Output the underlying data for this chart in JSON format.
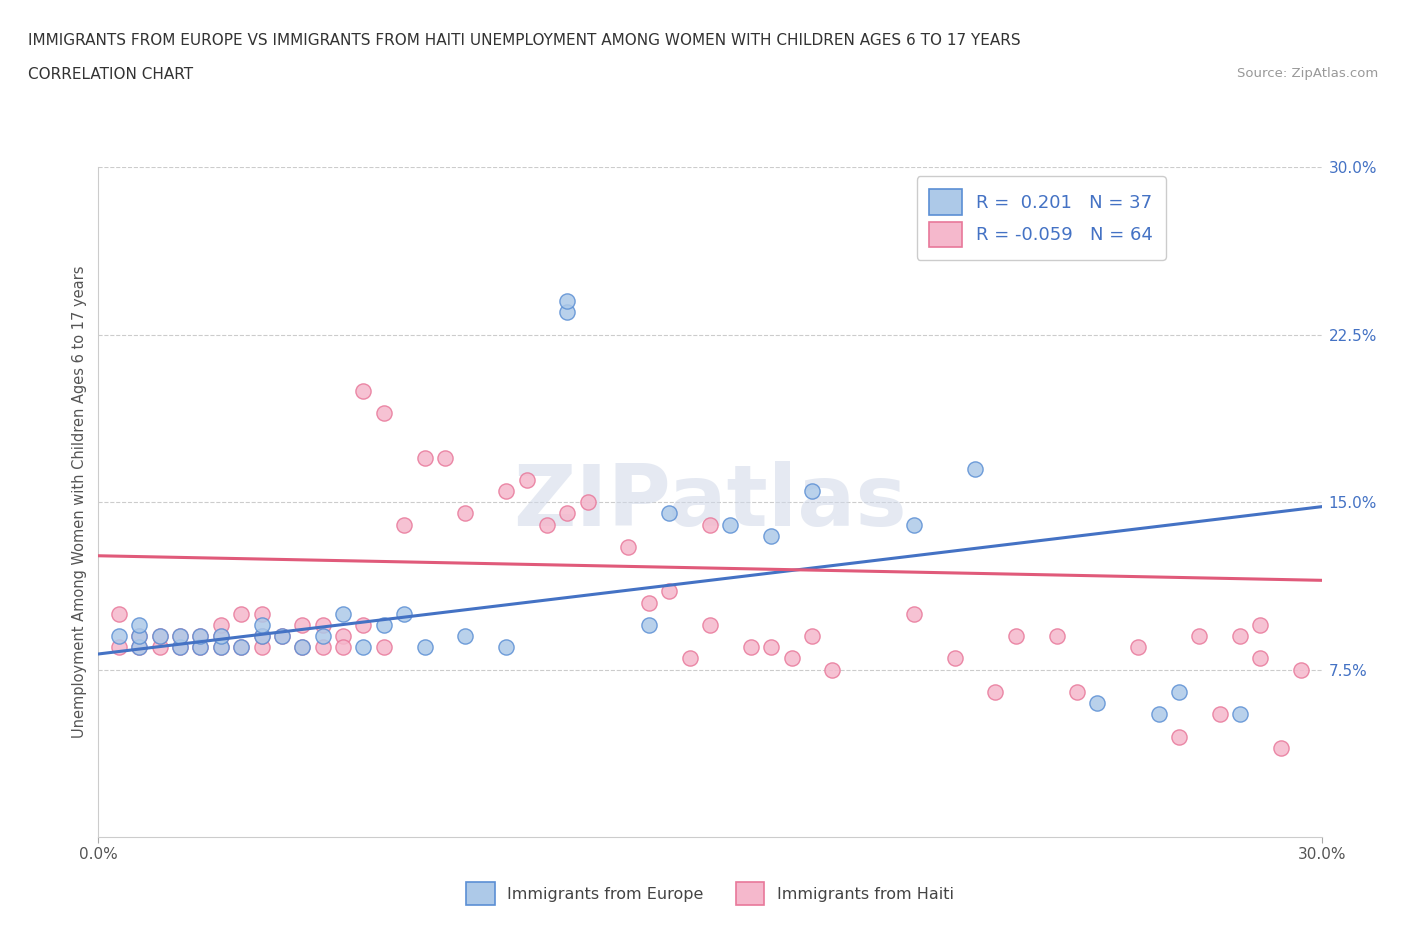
{
  "title": "IMMIGRANTS FROM EUROPE VS IMMIGRANTS FROM HAITI UNEMPLOYMENT AMONG WOMEN WITH CHILDREN AGES 6 TO 17 YEARS",
  "subtitle": "CORRELATION CHART",
  "source": "Source: ZipAtlas.com",
  "ylabel": "Unemployment Among Women with Children Ages 6 to 17 years",
  "xmin": 0.0,
  "xmax": 0.3,
  "ymin": 0.0,
  "ymax": 0.3,
  "ytick_labels_right": [
    "7.5%",
    "15.0%",
    "22.5%",
    "30.0%"
  ],
  "ytick_positions_right": [
    0.075,
    0.15,
    0.225,
    0.3
  ],
  "europe_R": 0.201,
  "europe_N": 37,
  "haiti_R": -0.059,
  "haiti_N": 64,
  "europe_color": "#adc9e8",
  "haiti_color": "#f5b8cc",
  "europe_edge_color": "#5b8fd4",
  "haiti_edge_color": "#e8789a",
  "europe_line_color": "#4472c4",
  "haiti_line_color": "#e05a7a",
  "europe_line_start_y": 0.082,
  "europe_line_end_y": 0.148,
  "haiti_line_start_y": 0.126,
  "haiti_line_end_y": 0.115,
  "europe_x": [
    0.005,
    0.01,
    0.01,
    0.01,
    0.015,
    0.02,
    0.02,
    0.025,
    0.025,
    0.03,
    0.03,
    0.035,
    0.04,
    0.04,
    0.045,
    0.05,
    0.055,
    0.06,
    0.065,
    0.07,
    0.075,
    0.08,
    0.09,
    0.1,
    0.115,
    0.115,
    0.135,
    0.14,
    0.155,
    0.165,
    0.175,
    0.2,
    0.215,
    0.245,
    0.26,
    0.265,
    0.28
  ],
  "europe_y": [
    0.09,
    0.085,
    0.09,
    0.095,
    0.09,
    0.085,
    0.09,
    0.085,
    0.09,
    0.085,
    0.09,
    0.085,
    0.09,
    0.095,
    0.09,
    0.085,
    0.09,
    0.1,
    0.085,
    0.095,
    0.1,
    0.085,
    0.09,
    0.085,
    0.235,
    0.24,
    0.095,
    0.145,
    0.14,
    0.135,
    0.155,
    0.14,
    0.165,
    0.06,
    0.055,
    0.065,
    0.055
  ],
  "haiti_x": [
    0.005,
    0.005,
    0.01,
    0.01,
    0.015,
    0.015,
    0.02,
    0.02,
    0.025,
    0.025,
    0.03,
    0.03,
    0.03,
    0.035,
    0.035,
    0.04,
    0.04,
    0.04,
    0.045,
    0.05,
    0.05,
    0.055,
    0.055,
    0.06,
    0.06,
    0.065,
    0.065,
    0.07,
    0.07,
    0.075,
    0.08,
    0.085,
    0.09,
    0.1,
    0.105,
    0.11,
    0.115,
    0.12,
    0.13,
    0.135,
    0.14,
    0.145,
    0.15,
    0.15,
    0.16,
    0.165,
    0.17,
    0.175,
    0.18,
    0.2,
    0.21,
    0.22,
    0.225,
    0.235,
    0.24,
    0.255,
    0.265,
    0.27,
    0.275,
    0.28,
    0.285,
    0.285,
    0.29,
    0.295
  ],
  "haiti_y": [
    0.085,
    0.1,
    0.085,
    0.09,
    0.085,
    0.09,
    0.085,
    0.09,
    0.085,
    0.09,
    0.085,
    0.09,
    0.095,
    0.085,
    0.1,
    0.085,
    0.09,
    0.1,
    0.09,
    0.085,
    0.095,
    0.085,
    0.095,
    0.09,
    0.085,
    0.095,
    0.2,
    0.085,
    0.19,
    0.14,
    0.17,
    0.17,
    0.145,
    0.155,
    0.16,
    0.14,
    0.145,
    0.15,
    0.13,
    0.105,
    0.11,
    0.08,
    0.095,
    0.14,
    0.085,
    0.085,
    0.08,
    0.09,
    0.075,
    0.1,
    0.08,
    0.065,
    0.09,
    0.09,
    0.065,
    0.085,
    0.045,
    0.09,
    0.055,
    0.09,
    0.08,
    0.095,
    0.04,
    0.075
  ],
  "watermark": "ZIPatlas",
  "legend_europe_label": "Immigrants from Europe",
  "legend_haiti_label": "Immigrants from Haiti",
  "grid_color": "#cccccc",
  "bg_color": "#ffffff"
}
